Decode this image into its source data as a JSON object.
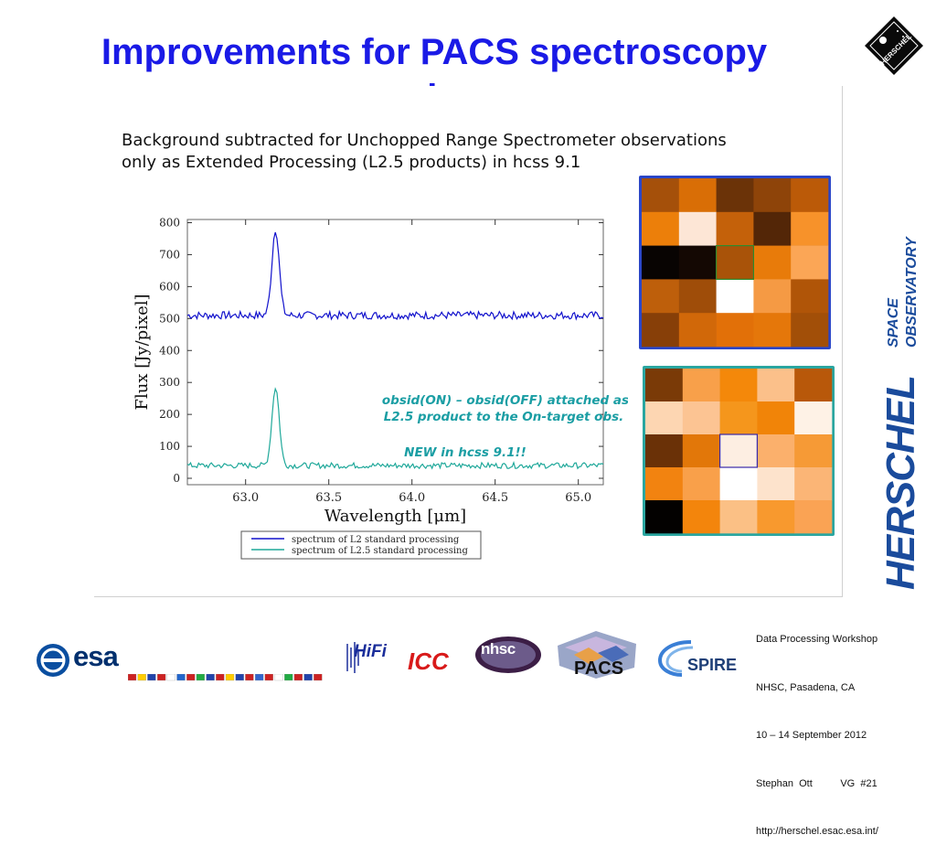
{
  "slide": {
    "title_line1": "Improvements for PACS spectroscopy",
    "title_line2": "products",
    "note_line1": "Background subtracted for Unchopped Range Spectrometer observations",
    "note_line2": "only as Extended Processing (L2.5 products) in hcss 9.1"
  },
  "chart_data": {
    "type": "line",
    "xlabel": "Wavelength [μm]",
    "ylabel": "Flux [Jy/pixel]",
    "xlim": [
      62.65,
      65.15
    ],
    "ylim": [
      -20,
      810
    ],
    "x_ticks": [
      "63.0",
      "63.5",
      "64.0",
      "64.5",
      "65.0"
    ],
    "y_ticks": [
      "0",
      "100",
      "200",
      "300",
      "400",
      "500",
      "600",
      "700",
      "800"
    ],
    "grid": "off",
    "series": [
      {
        "name": "spectrum of L2 standard processing",
        "color": "#1111cc",
        "baseline": 510,
        "noise": 12,
        "peak_x": 63.18,
        "peak_y": 780,
        "x": [
          62.65,
          63.1,
          63.15,
          63.18,
          63.21,
          63.25,
          63.5,
          64.0,
          64.5,
          65.15
        ],
        "y": [
          505,
          510,
          570,
          780,
          560,
          510,
          505,
          505,
          505,
          500
        ]
      },
      {
        "name": "spectrum of L2.5 standard processing",
        "color": "#1fa89a",
        "baseline": 40,
        "noise": 9,
        "peak_x": 63.18,
        "peak_y": 285,
        "x": [
          62.65,
          63.1,
          63.15,
          63.18,
          63.21,
          63.25,
          63.5,
          64.0,
          64.5,
          65.15
        ],
        "y": [
          40,
          42,
          90,
          285,
          100,
          42,
          40,
          38,
          40,
          40
        ]
      }
    ],
    "annotation_line1": "obsid(ON) – obsid(OFF) attached as",
    "annotation_line2": "L2.5 product to the On-target obs.",
    "annotation_line3": "NEW in hcss 9.1!!",
    "legend_position": "bottom"
  },
  "grids": {
    "top": {
      "border": "#2a46c8",
      "cells": [
        [
          "#a5500a",
          "#d96e06",
          "#6b3308",
          "#8e4409",
          "#bb5a08"
        ],
        [
          "#ec7f0a",
          "#fde6d6",
          "#c4610a",
          "#532607",
          "#f7922a"
        ],
        [
          "#080402",
          "#140803",
          "#a95309",
          "#e87b0a",
          "#fba656"
        ],
        [
          "#be5f0b",
          "#9f4d09",
          "#ffffff",
          "#f59a44",
          "#b05508"
        ],
        [
          "#873f08",
          "#d16809",
          "#e27008",
          "#e5770a",
          "#a24f08"
        ]
      ]
    },
    "bottom": {
      "border": "#2aa6a0",
      "cells": [
        [
          "#7a3a07",
          "#f8a04a",
          "#f4880a",
          "#fbc08a",
          "#b8580a"
        ],
        [
          "#fdd6b2",
          "#fcc493",
          "#f5961c",
          "#f18408",
          "#fef2e6"
        ],
        [
          "#6a3107",
          "#e27709",
          "#fdeee2",
          "#fbb06c",
          "#f69a36"
        ],
        [
          "#f28310",
          "#f9a04a",
          "#ffffff",
          "#fde3cc",
          "#fbb576"
        ],
        [
          "#030100",
          "#f3850c",
          "#fbc085",
          "#f8992e",
          "#faa354"
        ]
      ]
    }
  },
  "brand": {
    "herschel_word": "HERSCHEL",
    "space_word": "SPACE",
    "observatory_word": "OBSERVATORY",
    "logo_word": "HERSCHEL"
  },
  "footer": {
    "line1": "Data Processing Workshop",
    "line2": "NHSC, Pasadena, CA",
    "line3": "10 – 14 September 2012",
    "line4": "Stephan  Ott          VG  #21",
    "line5": "http://herschel.esac.esa.int/"
  },
  "logos": {
    "esa": "esa",
    "hifi": "HiFi",
    "icc": "ICC",
    "nhsc": "nhsc",
    "pacs": "PACS",
    "spire": "SPIRE"
  },
  "colors": {
    "title": "#1a1ae6",
    "esa_blue": "#00306e",
    "herschel_blue": "#1a4b9c"
  }
}
